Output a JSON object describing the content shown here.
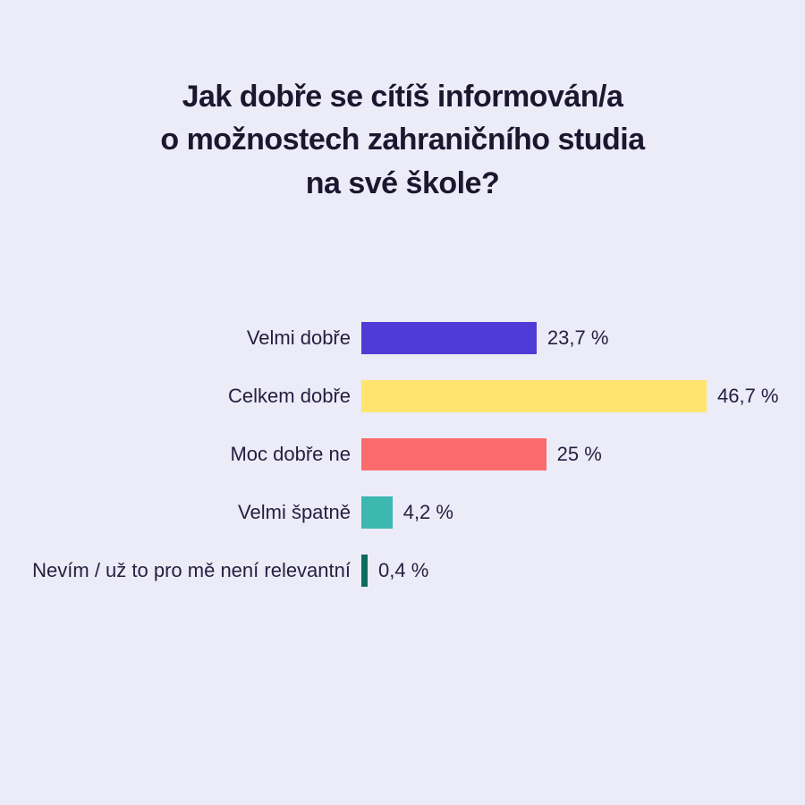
{
  "page": {
    "background_color": "#ecebf8",
    "text_color": "#241f3e",
    "title_color": "#1b172f"
  },
  "chart_data": {
    "type": "bar",
    "orientation": "horizontal",
    "title": "Jak dobře se cítíš informován/a o možnostech zahraničního studia na své škole?",
    "title_lines": [
      "Jak dobře se cítíš informován/a",
      "o možnostech zahraničního studia",
      "na své škole?"
    ],
    "categories": [
      "Velmi dobře",
      "Celkem dobře",
      "Moc dobře ne",
      "Velmi špatně",
      "Nevím / už to pro mě není relevantní"
    ],
    "values": [
      23.7,
      46.7,
      25,
      4.2,
      0.4
    ],
    "value_labels": [
      "23,7 %",
      "46,7 %",
      "25 %",
      "4,2 %",
      "0,4 %"
    ],
    "bar_colors": [
      "#4f3bd6",
      "#ffe570",
      "#fb6a6d",
      "#3db8b0",
      "#0d6b60"
    ],
    "xlabel": "",
    "ylabel": "",
    "xlim": [
      0,
      46.7
    ],
    "grid": false,
    "legend": "none",
    "value_label_position": "right-of-bar"
  }
}
